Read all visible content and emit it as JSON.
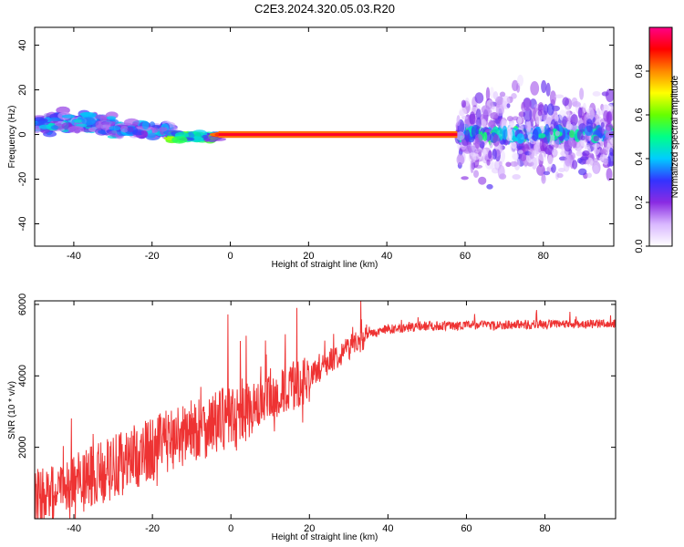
{
  "title": "C2E3.2024.320.05.03.R20",
  "chart_data": [
    {
      "type": "heatmap",
      "xlabel": "Height of straight line (km)",
      "ylabel": "Frequency (Hz)",
      "xlim": [
        -50,
        98
      ],
      "ylim": [
        -50,
        48
      ],
      "xticks": [
        -40,
        -20,
        0,
        20,
        40,
        60,
        80
      ],
      "yticks": [
        -40,
        -20,
        0,
        20,
        40
      ],
      "grid": false,
      "colorbar": {
        "label": "Normalized spectral amplitude",
        "range": [
          0,
          1
        ],
        "ticks": [
          0.0,
          0.2,
          0.4,
          0.6,
          0.8
        ],
        "colors": [
          "#ffffff",
          "#d9b8ff",
          "#8a2be2",
          "#3333ff",
          "#00ccff",
          "#00ff88",
          "#66ff00",
          "#ffff00",
          "#ff8800",
          "#ff0000",
          "#ff0088"
        ]
      },
      "features": [
        {
          "name": "",
          "x_range": [
            -50,
            -30
          ],
          "freq_center": 5,
          "freq_spread": 6,
          "amplitude": 0.35
        },
        {
          "name": "",
          "x_range": [
            -30,
            -15
          ],
          "freq_center": 2,
          "freq_spread": 4,
          "amplitude": 0.35
        },
        {
          "name": "",
          "x_range": [
            -15,
            -3
          ],
          "freq_center": -1,
          "freq_spread": 2,
          "amplitude": 0.55
        },
        {
          "name": "",
          "x_range": [
            -3,
            58
          ],
          "freq_center": 0,
          "freq_spread": 1,
          "amplitude": 0.95
        },
        {
          "name": "",
          "x_range": [
            58,
            98
          ],
          "freq_center": 0,
          "freq_spread": 25,
          "amplitude": 0.25
        }
      ]
    },
    {
      "type": "line",
      "xlabel": "Height of straight line (km)",
      "ylabel": "SNR (10 * v/v)",
      "xlim": [
        -50,
        98
      ],
      "ylim": [
        0,
        6100
      ],
      "xticks": [
        -40,
        -20,
        0,
        20,
        40,
        60,
        80
      ],
      "yticks": [
        2000,
        4000,
        6000
      ],
      "grid": false,
      "color": "#ee3333",
      "series": [
        {
          "x": [
            -50,
            -45,
            -40,
            -35,
            -30,
            -25,
            -20,
            -15,
            -10,
            -5,
            0,
            5,
            10,
            15,
            20,
            25,
            30,
            35,
            40,
            45,
            50,
            55,
            60,
            65,
            70,
            75,
            80,
            85,
            90,
            95,
            98
          ],
          "values": [
            500,
            650,
            850,
            1200,
            1450,
            1700,
            1950,
            2250,
            2450,
            2650,
            2850,
            3050,
            3300,
            3650,
            3950,
            4400,
            4800,
            5150,
            5300,
            5350,
            5400,
            5400,
            5420,
            5430,
            5430,
            5440,
            5440,
            5440,
            5450,
            5450,
            5450
          ]
        }
      ]
    }
  ]
}
